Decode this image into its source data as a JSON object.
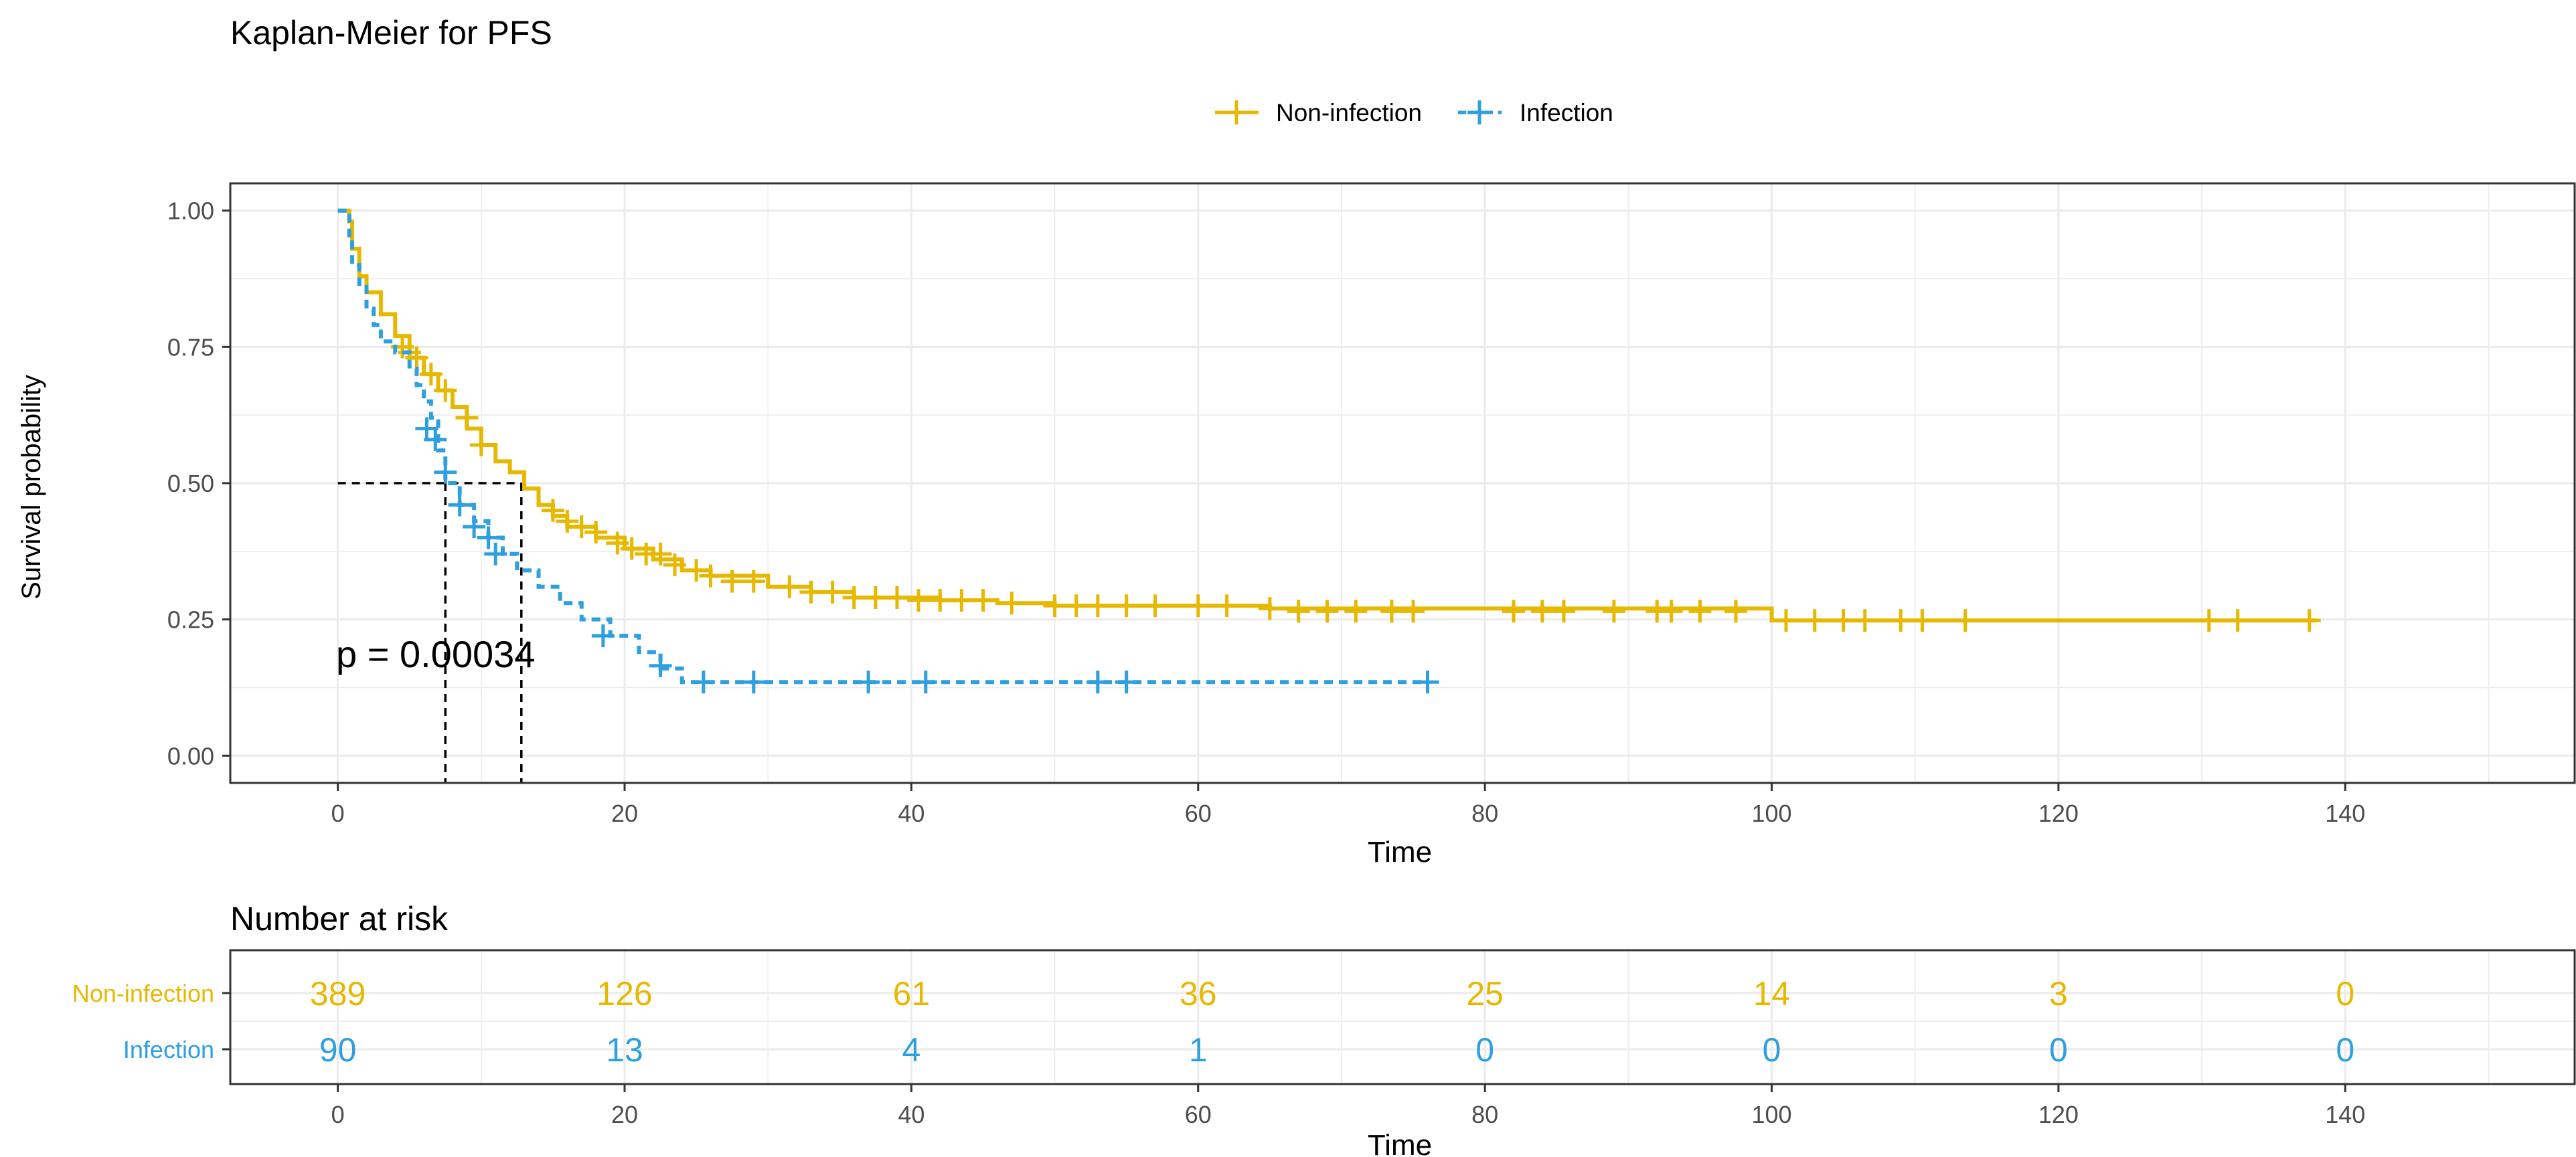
{
  "chart_data": [
    {
      "type": "line",
      "subtype": "kaplan-meier",
      "title": "Kaplan-Meier for PFS",
      "xlabel": "Time",
      "ylabel": "Survival probability",
      "xlim": [
        -7.5,
        156
      ],
      "ylim": [
        -0.05,
        1.05
      ],
      "x_ticks": [
        0,
        20,
        40,
        60,
        80,
        100,
        120,
        140
      ],
      "y_ticks": [
        0.0,
        0.25,
        0.5,
        0.75,
        1.0
      ],
      "y_tick_labels": [
        "0.00",
        "0.25",
        "0.50",
        "0.75",
        "1.00"
      ],
      "grid": true,
      "legend_position": "top",
      "annotation": "p = 0.00034",
      "median_survival": [
        {
          "series": "Non-infection",
          "x": 12.8,
          "y": 0.5
        },
        {
          "series": "Infection",
          "x": 7.5,
          "y": 0.5
        }
      ],
      "series": [
        {
          "name": "Non-infection",
          "color": "#E7B800",
          "line_style": "solid",
          "steps": [
            [
              0,
              1.0
            ],
            [
              0.8,
              0.98
            ],
            [
              1,
              0.93
            ],
            [
              1.5,
              0.88
            ],
            [
              2,
              0.85
            ],
            [
              3,
              0.81
            ],
            [
              4,
              0.77
            ],
            [
              5,
              0.73
            ],
            [
              6,
              0.7
            ],
            [
              7,
              0.67
            ],
            [
              8,
              0.64
            ],
            [
              9,
              0.6
            ],
            [
              10,
              0.57
            ],
            [
              11,
              0.54
            ],
            [
              12,
              0.52
            ],
            [
              13,
              0.49
            ],
            [
              14,
              0.46
            ],
            [
              15,
              0.44
            ],
            [
              16,
              0.42
            ],
            [
              18,
              0.4
            ],
            [
              20,
              0.38
            ],
            [
              22,
              0.36
            ],
            [
              24,
              0.34
            ],
            [
              26,
              0.33
            ],
            [
              30,
              0.31
            ],
            [
              33,
              0.3
            ],
            [
              36,
              0.29
            ],
            [
              42,
              0.285
            ],
            [
              46,
              0.28
            ],
            [
              50,
              0.275
            ],
            [
              65,
              0.27
            ],
            [
              100,
              0.248
            ],
            [
              138,
              0.248
            ]
          ],
          "censored": [
            [
              4.5,
              0.75
            ],
            [
              5,
              0.74
            ],
            [
              5.5,
              0.73
            ],
            [
              6.5,
              0.7
            ],
            [
              7.5,
              0.67
            ],
            [
              9,
              0.62
            ],
            [
              10,
              0.57
            ],
            [
              15,
              0.45
            ],
            [
              16,
              0.43
            ],
            [
              17,
              0.42
            ],
            [
              18,
              0.41
            ],
            [
              19.5,
              0.39
            ],
            [
              20.5,
              0.38
            ],
            [
              21.5,
              0.37
            ],
            [
              22.5,
              0.37
            ],
            [
              23.5,
              0.35
            ],
            [
              25,
              0.34
            ],
            [
              26,
              0.33
            ],
            [
              27.5,
              0.32
            ],
            [
              29,
              0.32
            ],
            [
              31.5,
              0.31
            ],
            [
              33,
              0.3
            ],
            [
              34.5,
              0.3
            ],
            [
              36,
              0.29
            ],
            [
              37.5,
              0.29
            ],
            [
              39,
              0.29
            ],
            [
              40.5,
              0.285
            ],
            [
              42,
              0.285
            ],
            [
              43.5,
              0.285
            ],
            [
              45,
              0.285
            ],
            [
              47,
              0.28
            ],
            [
              50,
              0.275
            ],
            [
              51.5,
              0.275
            ],
            [
              53,
              0.275
            ],
            [
              55,
              0.275
            ],
            [
              57,
              0.275
            ],
            [
              60,
              0.275
            ],
            [
              62,
              0.275
            ],
            [
              65,
              0.27
            ],
            [
              67,
              0.265
            ],
            [
              69,
              0.265
            ],
            [
              71,
              0.265
            ],
            [
              73.5,
              0.265
            ],
            [
              75,
              0.265
            ],
            [
              82,
              0.265
            ],
            [
              84,
              0.265
            ],
            [
              85.5,
              0.265
            ],
            [
              89,
              0.265
            ],
            [
              92,
              0.265
            ],
            [
              93,
              0.265
            ],
            [
              95,
              0.265
            ],
            [
              97.5,
              0.265
            ],
            [
              101,
              0.248
            ],
            [
              103,
              0.248
            ],
            [
              105,
              0.248
            ],
            [
              106.5,
              0.248
            ],
            [
              109,
              0.248
            ],
            [
              110.5,
              0.248
            ],
            [
              113.5,
              0.248
            ],
            [
              130.5,
              0.248
            ],
            [
              132.5,
              0.248
            ],
            [
              137.5,
              0.248
            ]
          ]
        },
        {
          "name": "Infection",
          "color": "#2E9FDF",
          "line_style": "dashed",
          "steps": [
            [
              0,
              1.0
            ],
            [
              0.8,
              0.95
            ],
            [
              1,
              0.9
            ],
            [
              1.5,
              0.86
            ],
            [
              2,
              0.82
            ],
            [
              2.5,
              0.79
            ],
            [
              3,
              0.76
            ],
            [
              4,
              0.74
            ],
            [
              5,
              0.71
            ],
            [
              5.5,
              0.68
            ],
            [
              6,
              0.65
            ],
            [
              6.5,
              0.62
            ],
            [
              7,
              0.56
            ],
            [
              7.5,
              0.5
            ],
            [
              8.5,
              0.46
            ],
            [
              9.5,
              0.43
            ],
            [
              10.5,
              0.4
            ],
            [
              11.5,
              0.37
            ],
            [
              12.5,
              0.34
            ],
            [
              14,
              0.31
            ],
            [
              15.5,
              0.28
            ],
            [
              17,
              0.25
            ],
            [
              19,
              0.22
            ],
            [
              21,
              0.19
            ],
            [
              22.5,
              0.16
            ],
            [
              24,
              0.135
            ],
            [
              76,
              0.135
            ]
          ],
          "censored": [
            [
              6.2,
              0.6
            ],
            [
              6.8,
              0.58
            ],
            [
              7.5,
              0.52
            ],
            [
              8.5,
              0.46
            ],
            [
              9.5,
              0.42
            ],
            [
              10.5,
              0.4
            ],
            [
              11,
              0.37
            ],
            [
              18.5,
              0.22
            ],
            [
              22.5,
              0.165
            ],
            [
              25.5,
              0.135
            ],
            [
              29,
              0.135
            ],
            [
              37,
              0.135
            ],
            [
              41,
              0.135
            ],
            [
              53,
              0.135
            ],
            [
              55,
              0.135
            ],
            [
              76,
              0.135
            ]
          ]
        }
      ]
    },
    {
      "type": "table",
      "title": "Number at risk",
      "xlabel": "Time",
      "x_ticks": [
        0,
        20,
        40,
        60,
        80,
        100,
        120,
        140
      ],
      "rows": [
        {
          "label": "Non-infection",
          "color": "#E7B800",
          "values": [
            389,
            126,
            61,
            36,
            25,
            14,
            3,
            0
          ]
        },
        {
          "label": "Infection",
          "color": "#2E9FDF",
          "values": [
            90,
            13,
            4,
            1,
            0,
            0,
            0,
            0
          ]
        }
      ]
    }
  ]
}
